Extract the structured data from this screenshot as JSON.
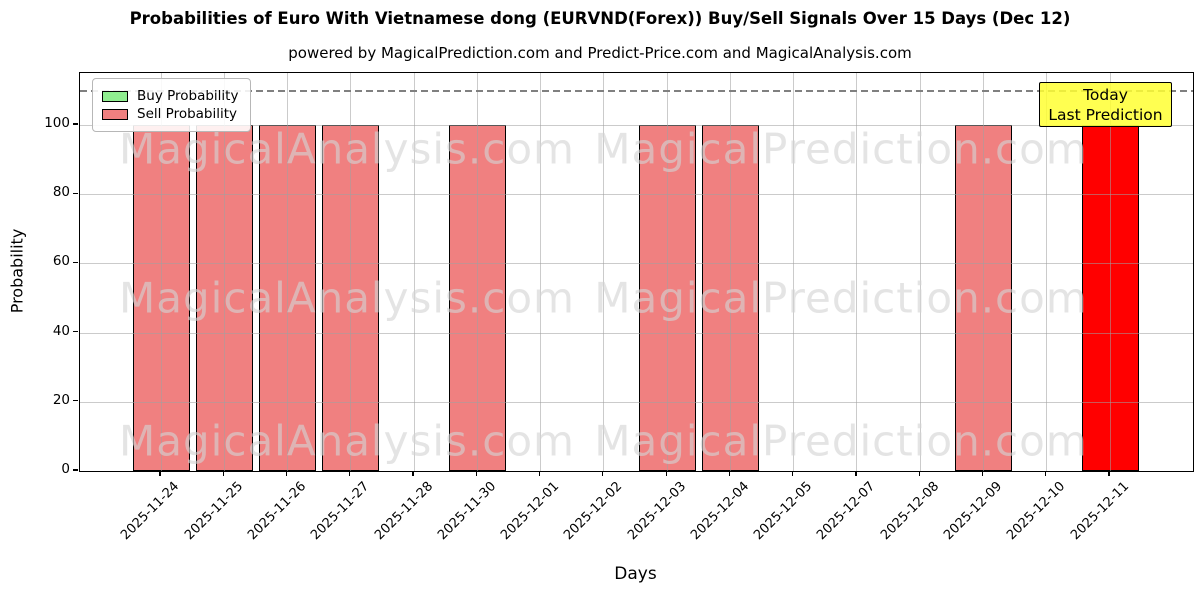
{
  "chart_data": {
    "type": "bar",
    "title": "Probabilities of Euro With Vietnamese dong (EURVND(Forex)) Buy/Sell Signals Over 15 Days (Dec 12)",
    "subtitle": "powered by MagicalPrediction.com and Predict-Price.com and MagicalAnalysis.com",
    "xlabel": "Days",
    "ylabel": "Probability",
    "categories": [
      "2025-11-24",
      "2025-11-25",
      "2025-11-26",
      "2025-11-27",
      "2025-11-28",
      "2025-11-30",
      "2025-12-01",
      "2025-12-02",
      "2025-12-03",
      "2025-12-04",
      "2025-12-05",
      "2025-12-07",
      "2025-12-08",
      "2025-12-09",
      "2025-12-10",
      "2025-12-11"
    ],
    "series": [
      {
        "name": "Buy Probability",
        "color": "#90ee90",
        "values": [
          0,
          0,
          0,
          0,
          0,
          0,
          0,
          0,
          0,
          0,
          0,
          0,
          0,
          0,
          0,
          0
        ]
      },
      {
        "name": "Sell Probability",
        "color": "#f08080",
        "values": [
          100,
          100,
          100,
          100,
          0,
          100,
          0,
          0,
          100,
          100,
          0,
          0,
          0,
          100,
          0,
          100
        ]
      }
    ],
    "ylim": [
      0,
      115
    ],
    "yticks": [
      0,
      20,
      40,
      60,
      80,
      100
    ],
    "grid": true,
    "bar_edge_color": "#000000",
    "threshold_line": {
      "y": 110,
      "style": "dashed",
      "color": "#808080"
    },
    "legend": {
      "position": "upper-left"
    },
    "highlight": {
      "index": 15,
      "color": "#ff0000",
      "box_color": "rgba(255,255,51,0.85)",
      "box_label_line1": "Today",
      "box_label_line2": "Last Prediction"
    },
    "watermarks": {
      "left": "MagicalAnalysis.com",
      "right": "MagicalPrediction.com"
    }
  }
}
